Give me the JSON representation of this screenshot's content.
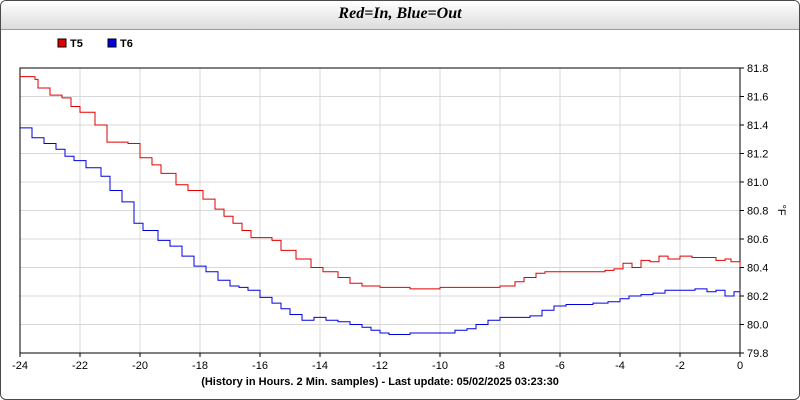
{
  "title": "Red=In, Blue=Out",
  "colors": {
    "in": "#e00000",
    "out": "#0000e0",
    "grid": "#d8d8d8"
  },
  "chart_data": {
    "type": "line",
    "title": "Red=In, Blue=Out",
    "xlabel": "(History in Hours. 2 Min. samples) - Last update: 05/02/2025 03:23:30",
    "ylabel": "°F",
    "xlim": [
      -24,
      0
    ],
    "ylim": [
      79.8,
      81.8
    ],
    "xticks": [
      "-24",
      "-22",
      "-20",
      "-18",
      "-16",
      "-14",
      "-12",
      "-10",
      "-8",
      "-6",
      "-4",
      "-2",
      "0"
    ],
    "yticks": [
      "81.8",
      "81.6",
      "81.4",
      "81.2",
      "81.0",
      "80.8",
      "80.6",
      "80.4",
      "80.2",
      "80.0",
      "79.8"
    ],
    "grid": true,
    "legend_position": "top-left",
    "series": [
      {
        "name": "T5",
        "color": "#e00000",
        "x": [
          -24,
          -23.5,
          -23.4,
          -23,
          -22.6,
          -22.3,
          -22,
          -21.5,
          -21.1,
          -20.4,
          -20,
          -19.6,
          -19.3,
          -18.8,
          -18.4,
          -17.9,
          -17.5,
          -17.2,
          -16.9,
          -16.6,
          -16.3,
          -15.6,
          -15.3,
          -14.8,
          -14.3,
          -13.9,
          -13.4,
          -13.0,
          -12.6,
          -12,
          -11.5,
          -11,
          -10.5,
          -10,
          -9.5,
          -9,
          -8.5,
          -8,
          -7.5,
          -7.2,
          -6.8,
          -6.5,
          -6,
          -5.5,
          -5,
          -4.5,
          -4.2,
          -3.9,
          -3.6,
          -3.3,
          -3,
          -2.7,
          -2.4,
          -2,
          -1.6,
          -1.2,
          -0.8,
          -0.5,
          -0.3,
          0
        ],
        "y": [
          81.74,
          81.72,
          81.66,
          81.61,
          81.59,
          81.53,
          81.49,
          81.4,
          81.28,
          81.27,
          81.17,
          81.12,
          81.06,
          80.98,
          80.94,
          80.88,
          80.81,
          80.76,
          80.71,
          80.66,
          80.61,
          80.59,
          80.52,
          80.46,
          80.4,
          80.37,
          80.33,
          80.29,
          80.27,
          80.26,
          80.26,
          80.25,
          80.25,
          80.26,
          80.26,
          80.26,
          80.26,
          80.27,
          80.3,
          80.33,
          80.36,
          80.37,
          80.37,
          80.37,
          80.37,
          80.38,
          80.39,
          80.43,
          80.4,
          80.45,
          80.44,
          80.48,
          80.46,
          80.48,
          80.47,
          80.47,
          80.45,
          80.46,
          80.44,
          80.4
        ]
      },
      {
        "name": "T6",
        "color": "#0000e0",
        "x": [
          -24,
          -23.6,
          -23.2,
          -22.8,
          -22.5,
          -22.2,
          -21.8,
          -21.3,
          -21,
          -20.6,
          -20.2,
          -19.9,
          -19.4,
          -19,
          -18.6,
          -18.2,
          -17.8,
          -17.4,
          -17,
          -16.7,
          -16.4,
          -16,
          -15.6,
          -15.3,
          -15,
          -14.6,
          -14.2,
          -13.8,
          -13.4,
          -13,
          -12.6,
          -12.3,
          -12,
          -11.7,
          -11.3,
          -11,
          -10.5,
          -10,
          -9.5,
          -9.1,
          -8.8,
          -8.4,
          -8,
          -7.5,
          -7,
          -6.6,
          -6.2,
          -5.8,
          -5.3,
          -4.9,
          -4.4,
          -4,
          -3.7,
          -3.3,
          -2.9,
          -2.5,
          -2,
          -1.5,
          -1.1,
          -0.8,
          -0.5,
          -0.2,
          0
        ],
        "y": [
          81.38,
          81.31,
          81.27,
          81.23,
          81.18,
          81.15,
          81.1,
          81.04,
          80.94,
          80.86,
          80.71,
          80.66,
          80.59,
          80.55,
          80.48,
          80.41,
          80.37,
          80.31,
          80.27,
          80.26,
          80.24,
          80.19,
          80.15,
          80.11,
          80.07,
          80.03,
          80.05,
          80.03,
          80.02,
          80.0,
          79.98,
          79.96,
          79.94,
          79.93,
          79.93,
          79.94,
          79.94,
          79.94,
          79.96,
          79.97,
          80.0,
          80.03,
          80.05,
          80.05,
          80.06,
          80.1,
          80.13,
          80.14,
          80.14,
          80.15,
          80.16,
          80.18,
          80.2,
          80.21,
          80.22,
          80.24,
          80.24,
          80.25,
          80.23,
          80.24,
          80.2,
          80.23,
          80.25
        ]
      }
    ]
  }
}
